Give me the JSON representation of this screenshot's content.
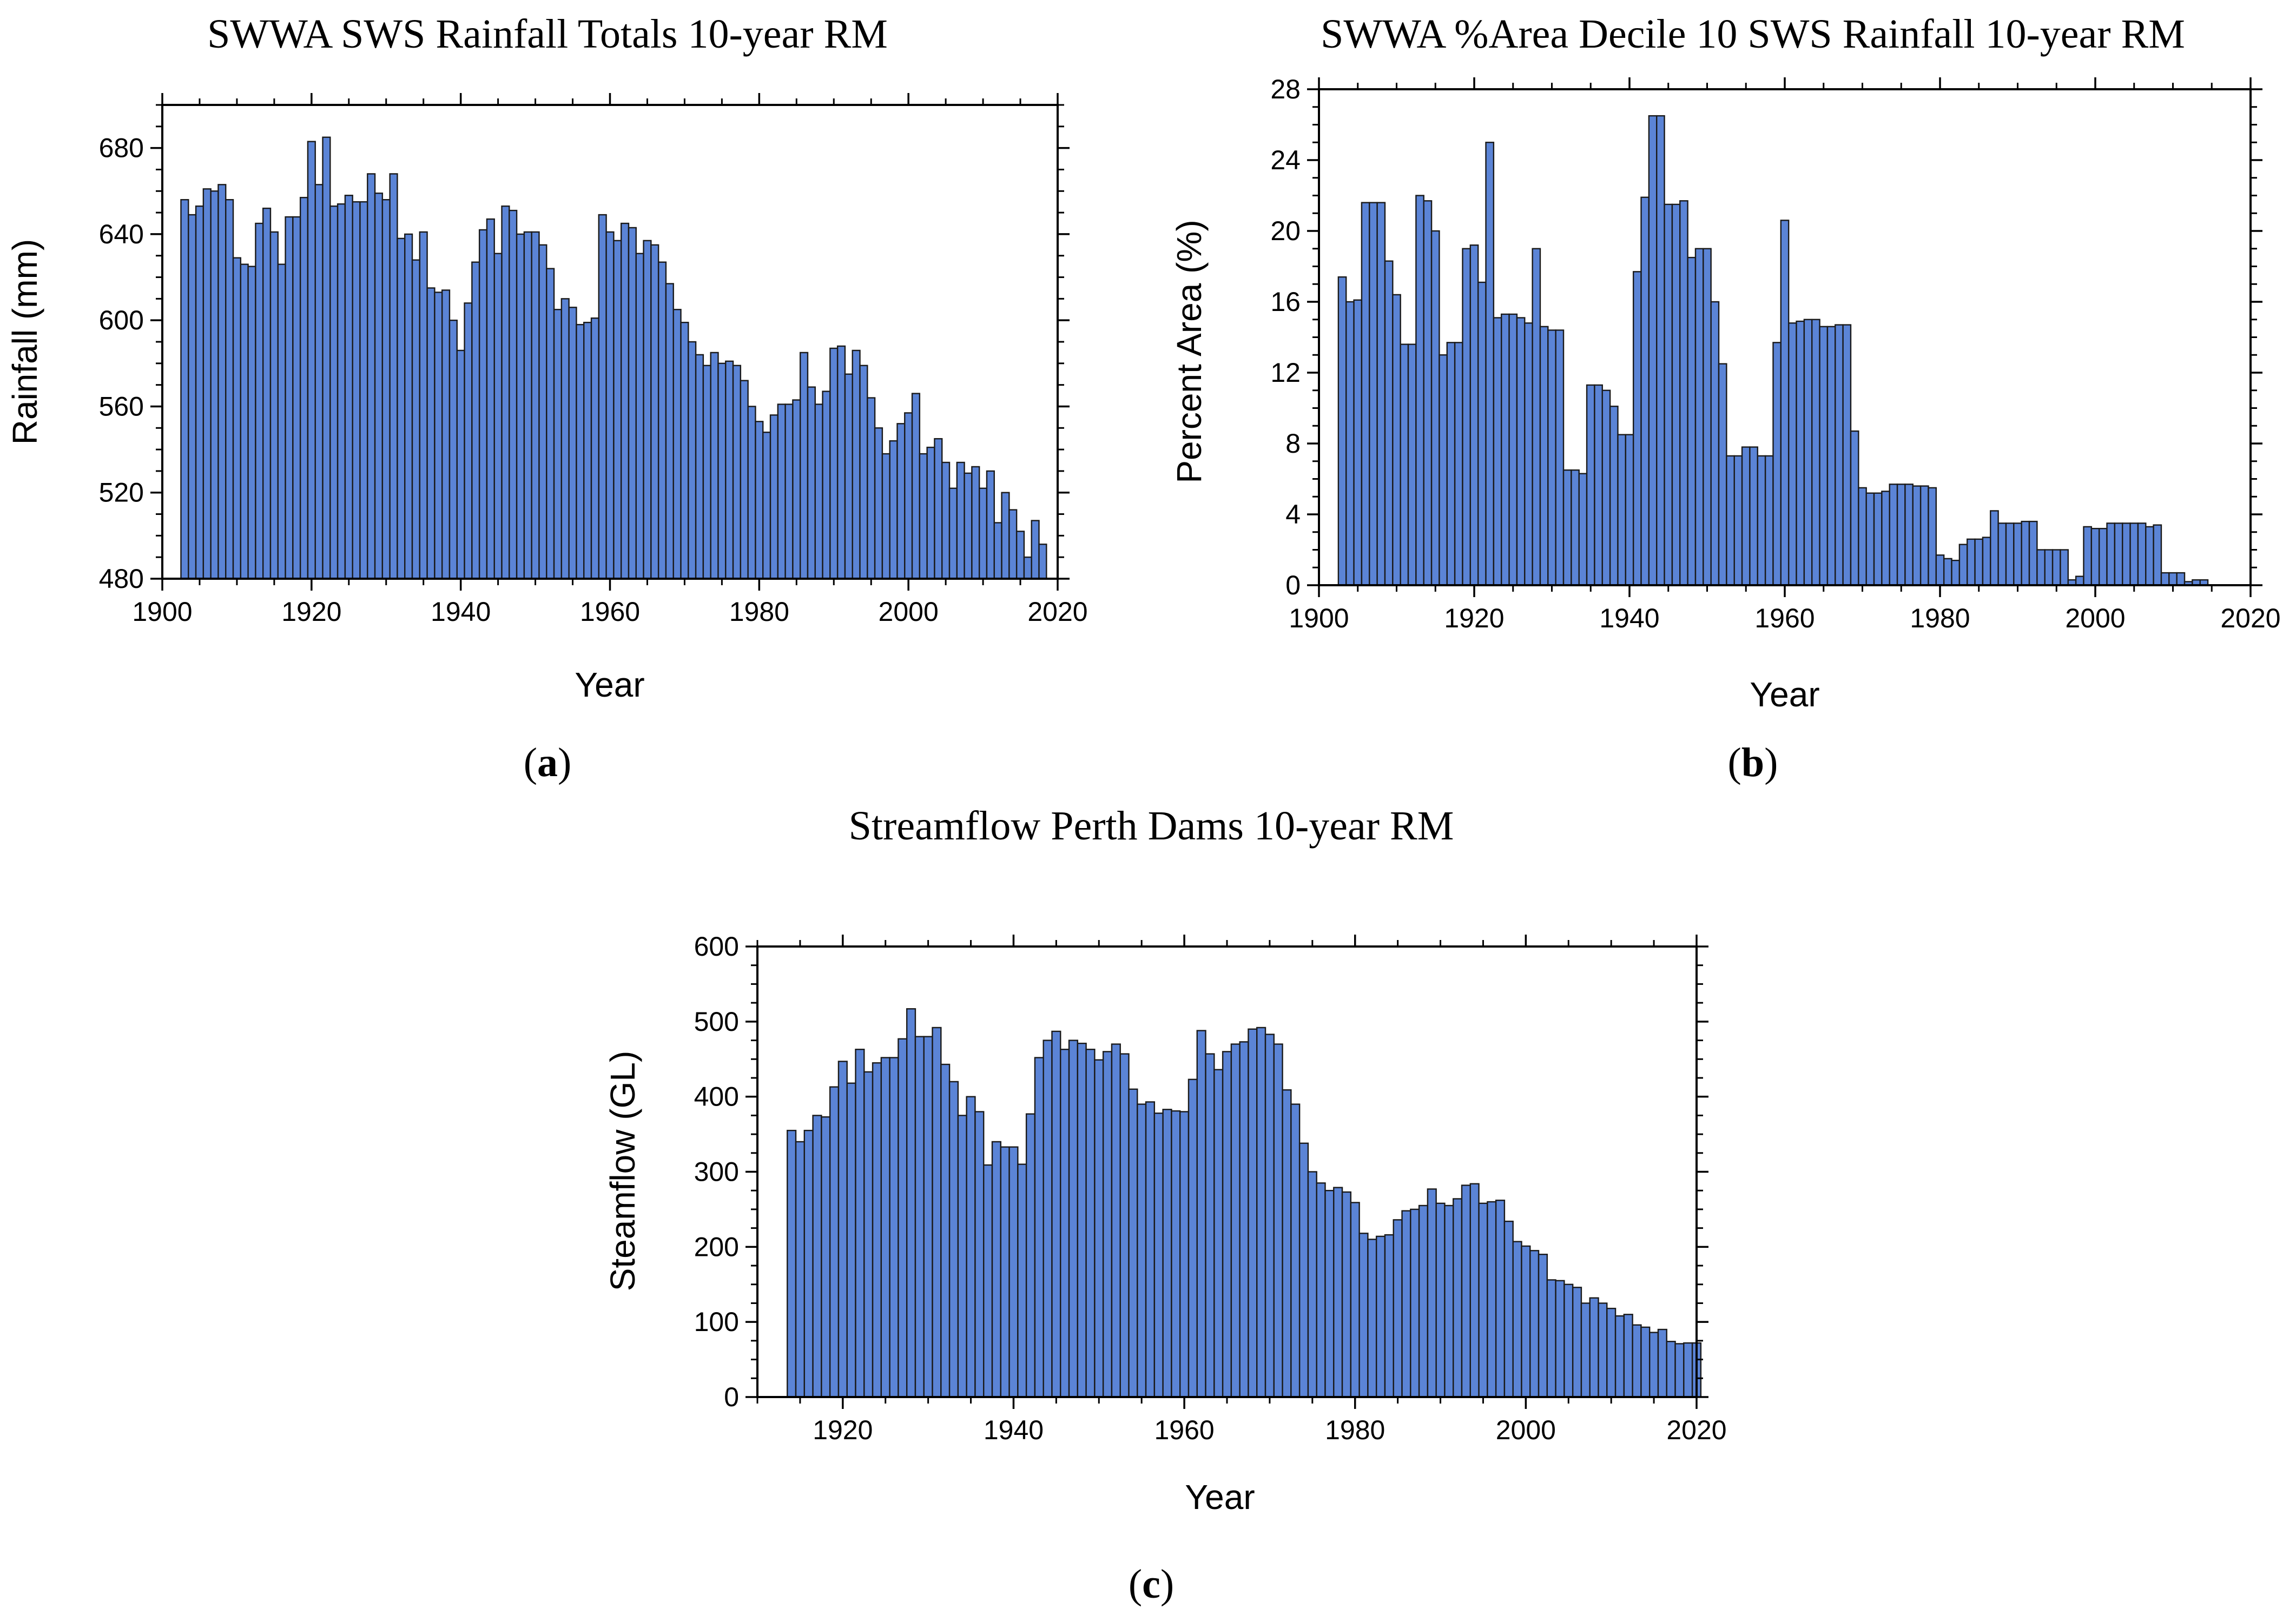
{
  "colors": {
    "bar_fill": "#5b84d6",
    "bar_edge": "#1a1a1a",
    "axis": "#000000"
  },
  "chart_data": [
    {
      "id": "a",
      "type": "bar",
      "title": "SWWA SWS Rainfall Totals 10-year RM",
      "panel_label": {
        "open": "(",
        "letter": "a",
        "close": ")"
      },
      "xlabel": "Year",
      "ylabel": "Rainfall (mm)",
      "xlim": [
        1900,
        2020
      ],
      "ylim": [
        480,
        700
      ],
      "xticks": [
        1900,
        1920,
        1940,
        1960,
        1980,
        2000,
        2020
      ],
      "yticks": [
        480,
        520,
        560,
        600,
        640,
        680
      ],
      "x_start": 1903,
      "values": [
        656,
        649,
        653,
        661,
        660,
        663,
        656,
        629,
        626,
        625,
        645,
        652,
        641,
        626,
        648,
        648,
        657,
        683,
        663,
        685,
        653,
        654,
        658,
        655,
        655,
        668,
        659,
        656,
        668,
        638,
        640,
        628,
        641,
        615,
        613,
        614,
        600,
        586,
        608,
        627,
        642,
        647,
        631,
        653,
        651,
        640,
        641,
        641,
        635,
        624,
        605,
        610,
        606,
        598,
        599,
        601,
        649,
        641,
        637,
        645,
        643,
        631,
        637,
        635,
        627,
        617,
        605,
        599,
        590,
        584,
        579,
        585,
        580,
        581,
        579,
        572,
        560,
        553,
        548,
        556,
        561,
        561,
        563,
        585,
        569,
        561,
        567,
        587,
        588,
        575,
        586,
        579,
        564,
        550,
        538,
        544,
        552,
        557,
        566,
        538,
        541,
        545,
        534,
        522,
        534,
        529,
        532,
        522,
        530,
        506,
        520,
        512,
        502,
        490,
        507,
        496
      ]
    },
    {
      "id": "b",
      "type": "bar",
      "title": "SWWA %Area Decile 10 SWS Rainfall 10-year RM",
      "panel_label": {
        "open": "(",
        "letter": "b",
        "close": ")"
      },
      "xlabel": "Year",
      "ylabel": "Percent Area (%)",
      "xlim": [
        1900,
        2020
      ],
      "ylim": [
        0,
        28
      ],
      "xticks": [
        1900,
        1920,
        1940,
        1960,
        1980,
        2000,
        2020
      ],
      "yticks": [
        0,
        4,
        8,
        12,
        16,
        20,
        24,
        28
      ],
      "x_start": 1903,
      "values": [
        17.4,
        16.0,
        16.1,
        21.6,
        21.6,
        21.6,
        18.3,
        16.4,
        13.6,
        13.6,
        22.0,
        21.7,
        20.0,
        13.0,
        13.7,
        13.7,
        19.0,
        19.2,
        17.1,
        25.0,
        15.1,
        15.3,
        15.3,
        15.1,
        14.8,
        19.0,
        14.6,
        14.4,
        14.4,
        6.5,
        6.5,
        6.3,
        11.3,
        11.3,
        11.0,
        10.1,
        8.5,
        8.5,
        17.7,
        21.9,
        26.5,
        26.5,
        21.5,
        21.5,
        21.7,
        18.5,
        19.0,
        19.0,
        16.0,
        12.5,
        7.3,
        7.3,
        7.8,
        7.8,
        7.3,
        7.3,
        13.7,
        20.6,
        14.8,
        14.9,
        15.0,
        15.0,
        14.6,
        14.6,
        14.7,
        14.7,
        8.7,
        5.5,
        5.2,
        5.2,
        5.3,
        5.7,
        5.7,
        5.7,
        5.6,
        5.6,
        5.5,
        1.7,
        1.5,
        1.4,
        2.3,
        2.6,
        2.6,
        2.7,
        4.2,
        3.5,
        3.5,
        3.5,
        3.6,
        3.6,
        2.0,
        2.0,
        2.0,
        2.0,
        0.3,
        0.5,
        3.3,
        3.2,
        3.2,
        3.5,
        3.5,
        3.5,
        3.5,
        3.5,
        3.3,
        3.4,
        0.7,
        0.7,
        0.7,
        0.2,
        0.3,
        0.3
      ]
    },
    {
      "id": "c",
      "type": "bar",
      "title": "Streamflow Perth Dams 10-year RM",
      "panel_label": {
        "open": "(",
        "letter": "c",
        "close": ")"
      },
      "xlabel": "Year",
      "ylabel": "Steamflow (GL)",
      "xlim": [
        1910,
        2020
      ],
      "ylim": [
        0,
        600
      ],
      "xticks": [
        1920,
        1940,
        1960,
        1980,
        2000,
        2020
      ],
      "yticks": [
        0,
        100,
        200,
        300,
        400,
        500,
        600
      ],
      "x_start": 1914,
      "values": [
        355,
        340,
        355,
        375,
        373,
        413,
        447,
        418,
        463,
        433,
        445,
        452,
        452,
        477,
        517,
        480,
        480,
        492,
        443,
        420,
        375,
        400,
        380,
        309,
        340,
        333,
        333,
        310,
        377,
        452,
        475,
        487,
        463,
        475,
        471,
        463,
        449,
        460,
        470,
        457,
        410,
        390,
        393,
        378,
        383,
        381,
        380,
        423,
        488,
        457,
        436,
        460,
        470,
        473,
        490,
        492,
        483,
        470,
        409,
        390,
        338,
        300,
        285,
        275,
        279,
        273,
        259,
        218,
        210,
        214,
        216,
        236,
        248,
        250,
        255,
        277,
        258,
        255,
        264,
        282,
        284,
        258,
        260,
        262,
        234,
        207,
        201,
        195,
        190,
        156,
        155,
        150,
        146,
        125,
        132,
        125,
        118,
        108,
        110,
        96,
        93,
        86,
        90,
        74,
        71,
        72,
        72
      ]
    }
  ]
}
